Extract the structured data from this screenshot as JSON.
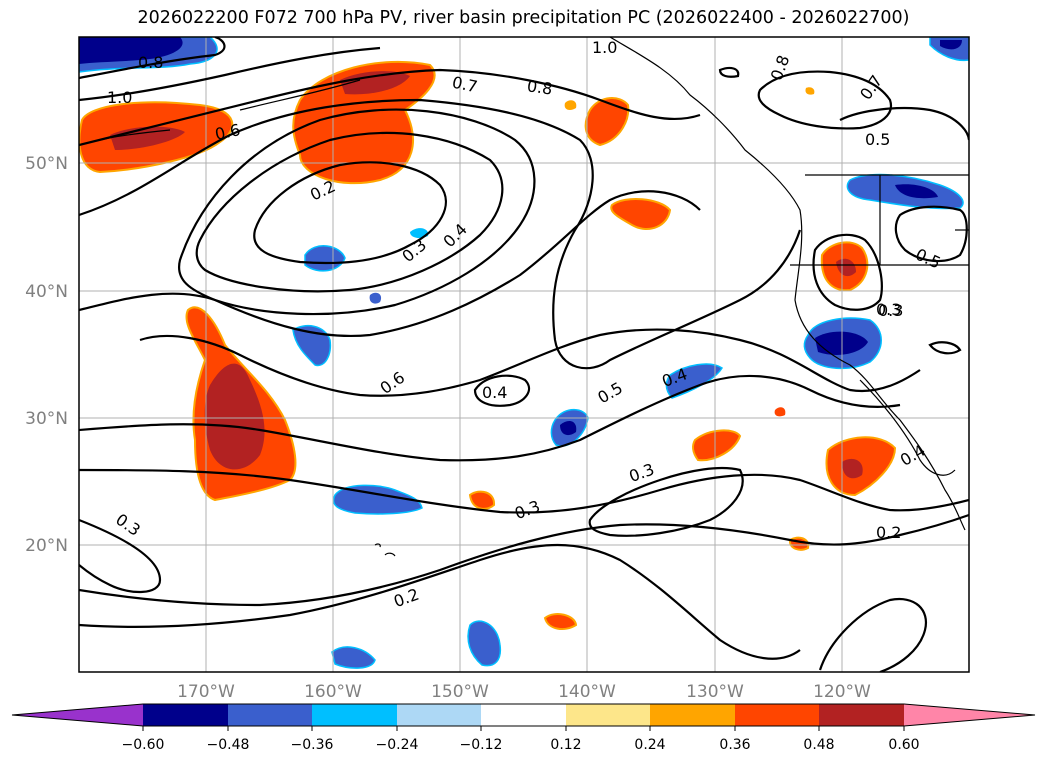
{
  "title": "2026022200 F072 700 hPa PV, river basin precipitation PC (2026022400 - 2026022700)",
  "lat_labels": [
    "50°N",
    "40°N",
    "30°N",
    "20°N"
  ],
  "lon_labels": [
    "170°W",
    "160°W",
    "150°W",
    "140°W",
    "130°W",
    "120°W"
  ],
  "contour_labels": [
    "0.8",
    "1.0",
    "0.6",
    "0.2",
    "0.7",
    "0.8",
    "1.0",
    "0.8",
    "0.7",
    "0.5",
    "0.3",
    "0.4",
    "0.5",
    "0.3",
    "0.6",
    "0.4",
    "0.5",
    "0.4",
    "0.3",
    "0.3",
    "0.4",
    "0.2",
    "0.3",
    "0.3",
    "0.2"
  ],
  "colorbar": {
    "ticks": [
      "−0.60",
      "−0.48",
      "−0.36",
      "−0.24",
      "−0.12",
      "0.12",
      "0.24",
      "0.36",
      "0.48",
      "0.60"
    ],
    "colors": [
      "#9932cc",
      "#00008b",
      "#3a5fcd",
      "#00bfff",
      "#add8f5",
      "#ffffff",
      "#fde68a",
      "#ffa500",
      "#ff4500",
      "#b22222",
      "#ff85a8"
    ]
  }
}
